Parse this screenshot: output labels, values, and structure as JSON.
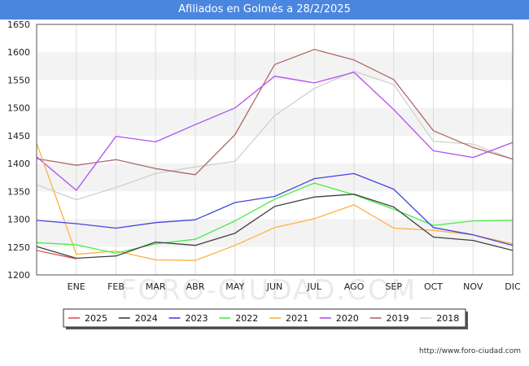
{
  "title": "Afiliados en Golmés a 28/2/2025",
  "footer": "http://www.foro-ciudad.com",
  "watermark": "FORO-CIUDAD.COM",
  "chart_data": {
    "type": "line",
    "title": "Afiliados en Golmés a 28/2/2025",
    "xlabel": "",
    "ylabel": "",
    "categories": [
      "",
      "ENE",
      "FEB",
      "MAR",
      "ABR",
      "MAY",
      "JUN",
      "JUL",
      "AGO",
      "SEP",
      "OCT",
      "NOV",
      "DIC"
    ],
    "ylim": [
      1200,
      1650
    ],
    "yticks": [
      1200,
      1250,
      1300,
      1350,
      1400,
      1450,
      1500,
      1550,
      1600,
      1650
    ],
    "grid": "horizontal bands",
    "legend_position": "bottom",
    "series": [
      {
        "name": "2025",
        "color": "#e05050",
        "values": [
          1244,
          1229,
          null,
          null,
          null,
          null,
          null,
          null,
          null,
          null,
          null,
          null,
          null
        ]
      },
      {
        "name": "2024",
        "color": "#404040",
        "values": [
          1251,
          1230,
          1234,
          1259,
          1253,
          1275,
          1323,
          1340,
          1345,
          1322,
          1268,
          1262,
          1244
        ]
      },
      {
        "name": "2023",
        "color": "#4444e0",
        "values": [
          1298,
          1292,
          1284,
          1294,
          1299,
          1330,
          1341,
          1373,
          1382,
          1354,
          1285,
          1272,
          1253
        ]
      },
      {
        "name": "2022",
        "color": "#44ee44",
        "values": [
          1258,
          1254,
          1239,
          1256,
          1264,
          1297,
          1336,
          1365,
          1344,
          1318,
          1289,
          1297,
          1298
        ]
      },
      {
        "name": "2021",
        "color": "#ffb040",
        "values": [
          1437,
          1237,
          1243,
          1227,
          1226,
          1253,
          1285,
          1301,
          1326,
          1284,
          1280,
          1272,
          1256
        ]
      },
      {
        "name": "2020",
        "color": "#b050f0",
        "values": [
          1412,
          1352,
          1449,
          1439,
          1470,
          1500,
          1557,
          1545,
          1564,
          1497,
          1423,
          1411,
          1438
        ]
      },
      {
        "name": "2019",
        "color": "#b06868",
        "values": [
          1409,
          1397,
          1407,
          1391,
          1380,
          1452,
          1578,
          1605,
          1586,
          1551,
          1459,
          1429,
          1408
        ]
      },
      {
        "name": "2018",
        "color": "#d0d0d0",
        "values": [
          1362,
          1335,
          1357,
          1382,
          1394,
          1404,
          1486,
          1535,
          1566,
          1542,
          1440,
          1435,
          1408
        ]
      }
    ]
  }
}
